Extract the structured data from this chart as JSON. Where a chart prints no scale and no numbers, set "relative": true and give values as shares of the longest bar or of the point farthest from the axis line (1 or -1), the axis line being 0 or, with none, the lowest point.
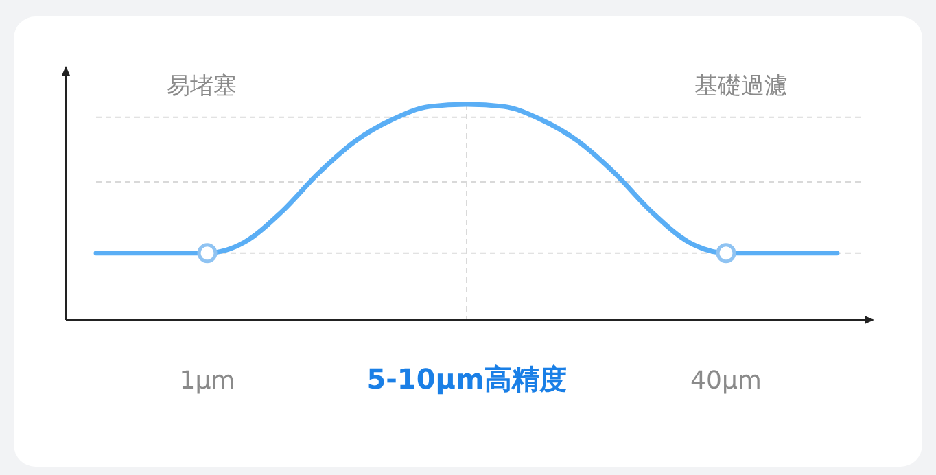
{
  "chart_data": {
    "type": "line",
    "relative": true,
    "categories": [
      null,
      null,
      null,
      "1μm",
      null,
      null,
      null,
      null,
      null,
      null,
      "5-10μm高精度",
      null,
      null,
      null,
      null,
      null,
      null,
      "40μm",
      null,
      null,
      null
    ],
    "series": [
      {
        "color": "#5aaef5",
        "values": [
          0.31,
          0.31,
          0.31,
          0.31,
          0.36,
          0.5,
          0.68,
          0.83,
          0.93,
          0.99,
          1,
          0.99,
          0.93,
          0.83,
          0.68,
          0.5,
          0.36,
          0.31,
          0.31,
          0.31,
          0.31
        ]
      },
      {
        "type": "scatter",
        "color": "#8fc3f2",
        "marker": "circle",
        "values": [
          null,
          null,
          null,
          0.31,
          null,
          null,
          null,
          null,
          null,
          null,
          null,
          null,
          null,
          null,
          null,
          null,
          null,
          0.31,
          null,
          null,
          null
        ]
      }
    ],
    "ref_lines": [
      {
        "axis": "y",
        "value": 0.94,
        "color": "#d9d9d9",
        "line_style": "dashed"
      },
      {
        "axis": "y",
        "value": 0.64,
        "color": "#d9d9d9",
        "line_style": "dashed"
      },
      {
        "axis": "y",
        "value": 0.31,
        "color": "#d9d9d9",
        "line_style": "dashed"
      },
      {
        "axis": "x",
        "value": "5-10μm高精度",
        "color": "#d9d9d9",
        "line_style": "dashed"
      }
    ],
    "annotations": [
      "易堵塞",
      "基礎過濾"
    ],
    "grid": false
  }
}
